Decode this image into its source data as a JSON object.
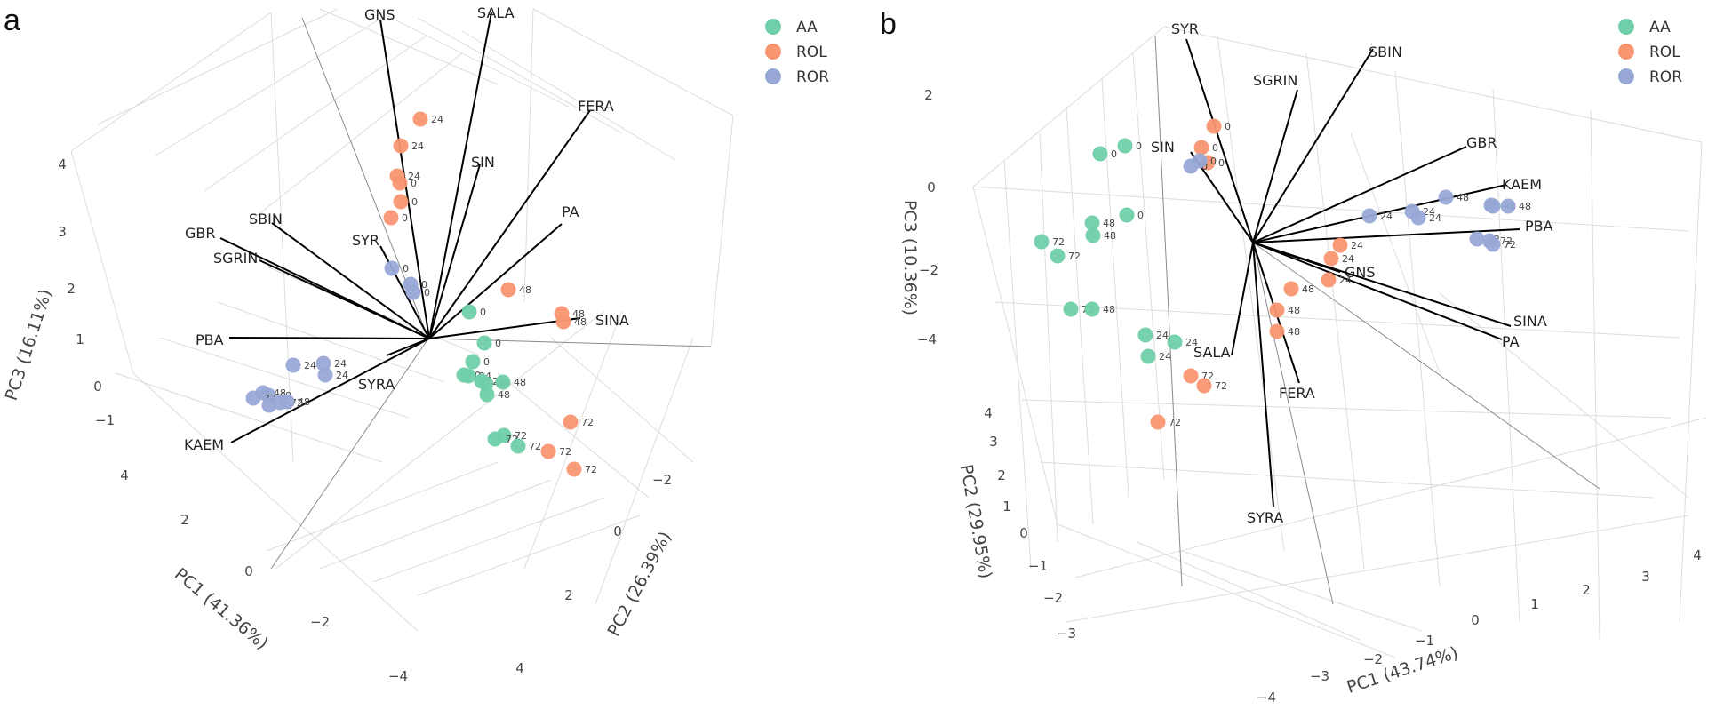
{
  "colors": {
    "AA": "#6fcfa9",
    "ROL": "#f99672",
    "ROR": "#98a8d6"
  },
  "chart_data": [
    {
      "panel": "a",
      "type": "scatter",
      "legend": [
        "AA",
        "ROL",
        "ROR"
      ],
      "axes": {
        "pc1": {
          "title": "PC1 (41.36%)",
          "ticks": [
            "4",
            "2",
            "0",
            "−2",
            "−4"
          ]
        },
        "pc2": {
          "title": "PC2 (26.39%)",
          "ticks": [
            "−2",
            "0",
            "2",
            "4"
          ]
        },
        "pc3": {
          "title": "PC3 (16.11%)",
          "ticks": [
            "4",
            "3",
            "2",
            "1",
            "0",
            "−1"
          ]
        }
      },
      "loadings": [
        "GNS",
        "SALA",
        "FERA",
        "SIN",
        "PA",
        "SINA",
        "SYR",
        "SBIN",
        "GBR",
        "SGRIN",
        "PBA",
        "KAEM",
        "SYRA"
      ],
      "points": [
        {
          "group": "ROL",
          "label": "24"
        },
        {
          "group": "ROL",
          "label": "24"
        },
        {
          "group": "ROL",
          "label": "24"
        },
        {
          "group": "ROL",
          "label": "0"
        },
        {
          "group": "ROL",
          "label": "0"
        },
        {
          "group": "ROL",
          "label": "0"
        },
        {
          "group": "ROL",
          "label": "48"
        },
        {
          "group": "ROL",
          "label": "48"
        },
        {
          "group": "ROL",
          "label": "48"
        },
        {
          "group": "ROL",
          "label": "72"
        },
        {
          "group": "ROL",
          "label": "72"
        },
        {
          "group": "ROL",
          "label": "72"
        },
        {
          "group": "ROR",
          "label": "0"
        },
        {
          "group": "ROR",
          "label": "0"
        },
        {
          "group": "ROR",
          "label": "0"
        },
        {
          "group": "ROR",
          "label": "24"
        },
        {
          "group": "ROR",
          "label": "24"
        },
        {
          "group": "ROR",
          "label": "24"
        },
        {
          "group": "ROR",
          "label": "48"
        },
        {
          "group": "ROR",
          "label": "48"
        },
        {
          "group": "ROR",
          "label": "72"
        },
        {
          "group": "ROR",
          "label": "72"
        },
        {
          "group": "ROR",
          "label": "72"
        },
        {
          "group": "ROR",
          "label": "48"
        },
        {
          "group": "AA",
          "label": "0"
        },
        {
          "group": "AA",
          "label": "0"
        },
        {
          "group": "AA",
          "label": "0"
        },
        {
          "group": "AA",
          "label": "0"
        },
        {
          "group": "AA",
          "label": "24"
        },
        {
          "group": "AA",
          "label": "24"
        },
        {
          "group": "AA",
          "label": "48"
        },
        {
          "group": "AA",
          "label": "48"
        },
        {
          "group": "AA",
          "label": "48"
        },
        {
          "group": "AA",
          "label": "72"
        },
        {
          "group": "AA",
          "label": "72"
        },
        {
          "group": "AA",
          "label": "72"
        }
      ]
    },
    {
      "panel": "b",
      "type": "scatter",
      "legend": [
        "AA",
        "ROL",
        "ROR"
      ],
      "axes": {
        "pc1": {
          "title": "PC1 (43.74%)",
          "ticks": [
            "4",
            "3",
            "2",
            "1",
            "0",
            "−1",
            "−2",
            "−3",
            "−4"
          ]
        },
        "pc2": {
          "title": "PC2 (29.95%)",
          "ticks": [
            "4",
            "3",
            "2",
            "1",
            "0",
            "−1",
            "−2",
            "−3"
          ]
        },
        "pc3": {
          "title": "PC3 (10.36%)",
          "ticks": [
            "2",
            "0",
            "−2",
            "−4"
          ]
        }
      },
      "loadings": [
        "SYR",
        "SBIN",
        "SGRIN",
        "SIN",
        "GBR",
        "KAEM",
        "PBA",
        "GNS",
        "SINA",
        "PA",
        "SALA",
        "FERA",
        "SYRA"
      ],
      "points": [
        {
          "group": "AA",
          "label": "0"
        },
        {
          "group": "AA",
          "label": "0"
        },
        {
          "group": "AA",
          "label": "0"
        },
        {
          "group": "AA",
          "label": "48"
        },
        {
          "group": "AA",
          "label": "48"
        },
        {
          "group": "AA",
          "label": "72"
        },
        {
          "group": "AA",
          "label": "72"
        },
        {
          "group": "AA",
          "label": "72"
        },
        {
          "group": "AA",
          "label": "48"
        },
        {
          "group": "AA",
          "label": "24"
        },
        {
          "group": "AA",
          "label": "24"
        },
        {
          "group": "AA",
          "label": "24"
        },
        {
          "group": "ROL",
          "label": "0"
        },
        {
          "group": "ROL",
          "label": "0"
        },
        {
          "group": "ROL",
          "label": "0"
        },
        {
          "group": "ROL",
          "label": "24"
        },
        {
          "group": "ROL",
          "label": "24"
        },
        {
          "group": "ROL",
          "label": "24"
        },
        {
          "group": "ROL",
          "label": "48"
        },
        {
          "group": "ROL",
          "label": "48"
        },
        {
          "group": "ROL",
          "label": "48"
        },
        {
          "group": "ROL",
          "label": "72"
        },
        {
          "group": "ROL",
          "label": "72"
        },
        {
          "group": "ROL",
          "label": "72"
        },
        {
          "group": "ROR",
          "label": "0"
        },
        {
          "group": "ROR",
          "label": "0"
        },
        {
          "group": "ROR",
          "label": "48"
        },
        {
          "group": "ROR",
          "label": "24"
        },
        {
          "group": "ROR",
          "label": "24"
        },
        {
          "group": "ROR",
          "label": "24"
        },
        {
          "group": "ROR",
          "label": "48"
        },
        {
          "group": "ROR",
          "label": "48"
        },
        {
          "group": "ROR",
          "label": "48"
        },
        {
          "group": "ROR",
          "label": "72"
        },
        {
          "group": "ROR",
          "label": "72"
        },
        {
          "group": "ROR",
          "label": "72"
        }
      ]
    }
  ]
}
